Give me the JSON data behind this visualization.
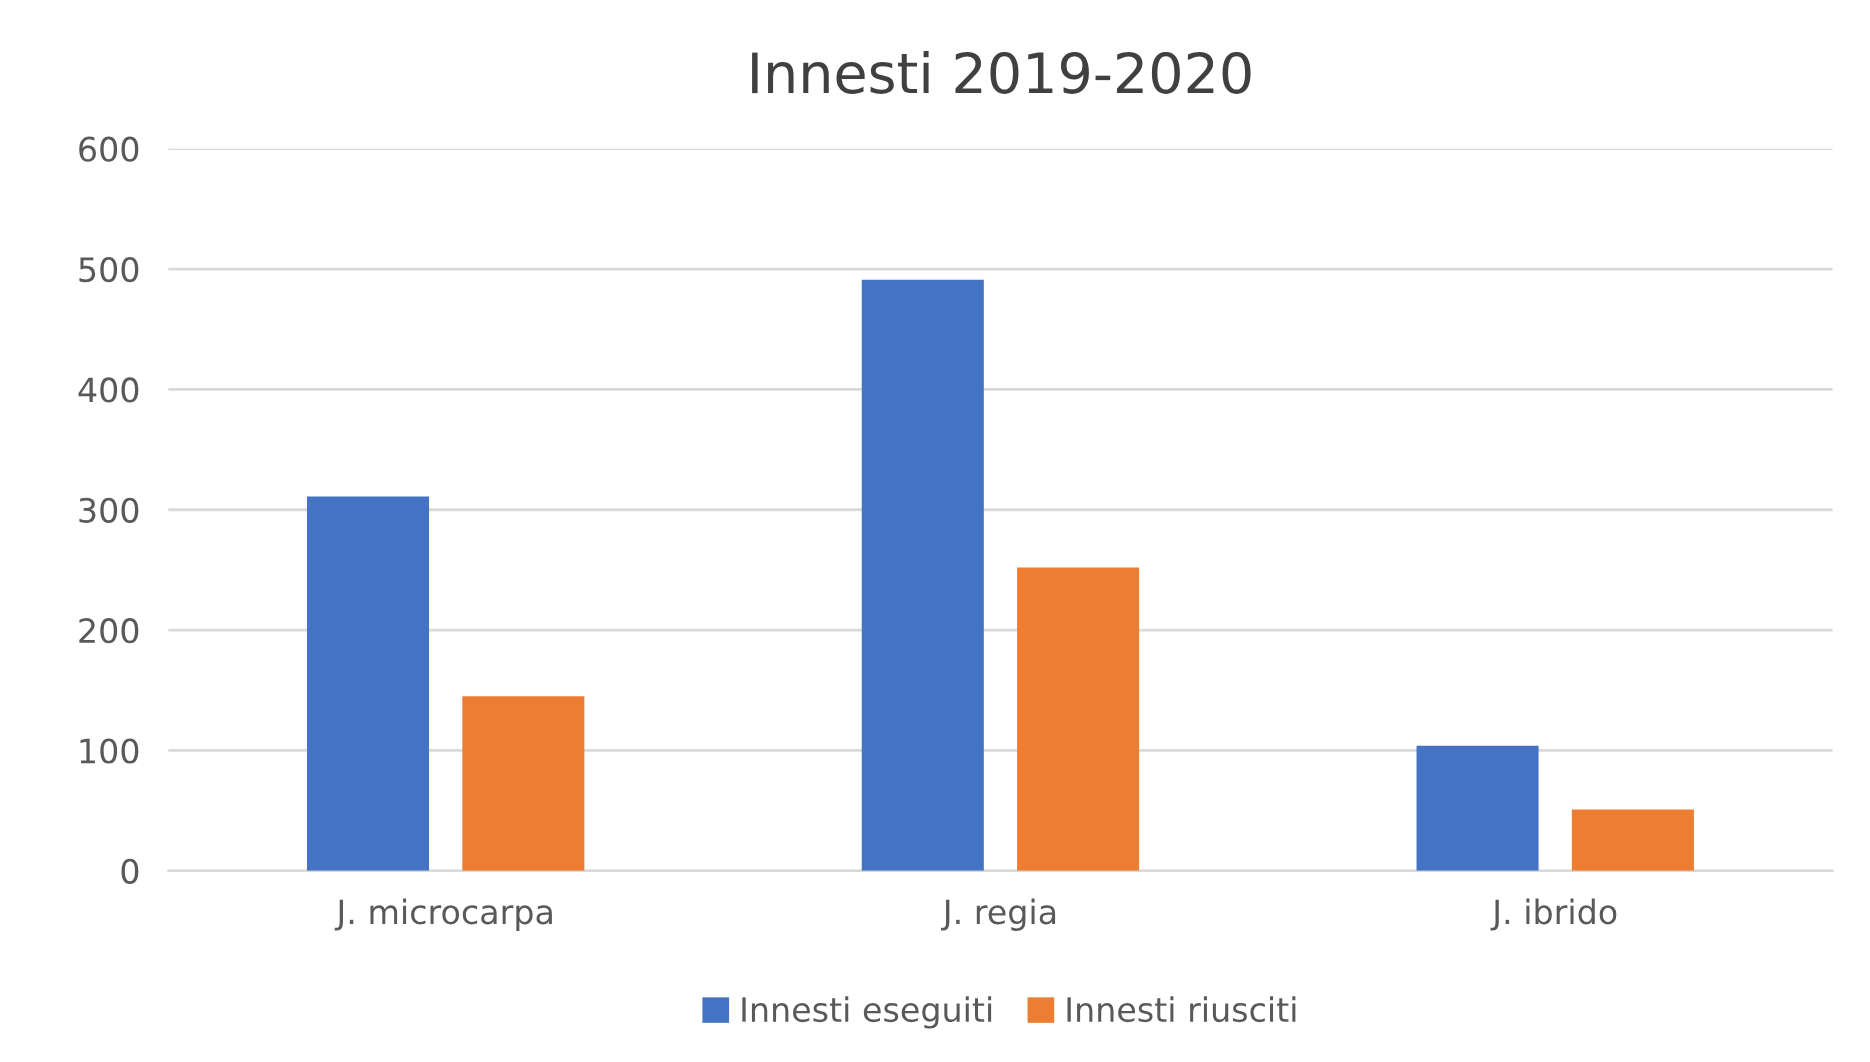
{
  "chart_data": {
    "type": "bar",
    "title": "Innesti 2019-2020",
    "categories": [
      "J. microcarpa",
      "J. regia",
      "J. ibrido"
    ],
    "series": [
      {
        "name": "Innesti eseguiti",
        "color": "#4472c4",
        "values": [
          311,
          491,
          104
        ]
      },
      {
        "name": "Innesti riusciti",
        "color": "#ed7d31",
        "values": [
          145,
          252,
          51
        ]
      }
    ],
    "ylim": [
      0,
      600
    ],
    "yticks": [
      0,
      100,
      200,
      300,
      400,
      500,
      600
    ],
    "grid": "y",
    "legend": "bottom"
  }
}
